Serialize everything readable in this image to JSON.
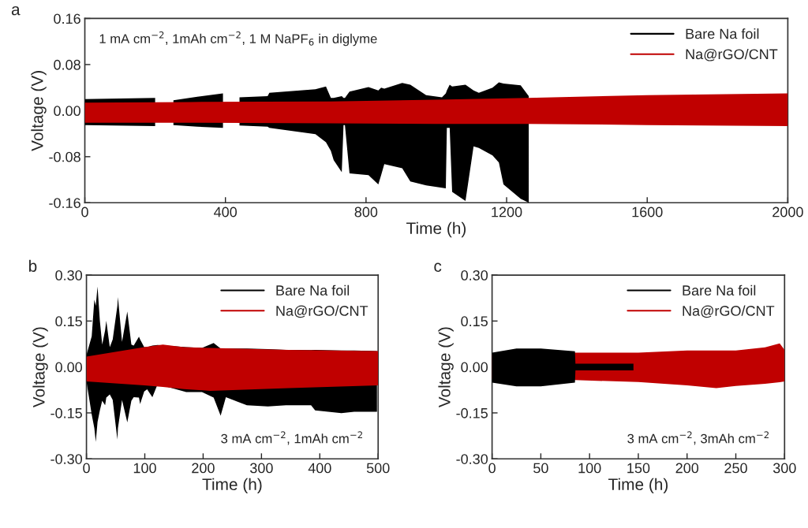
{
  "chart_data": [
    {
      "type": "line",
      "title": "a",
      "xlabel": "Time (h)",
      "ylabel": "Voltage (V)",
      "annotations": [
        "1 mA cm$^{−2}$, 1mAh cm$^{−2}$, 1 M NaPF$_{6}$ in diglyme"
      ],
      "xlim": [
        0,
        2000
      ],
      "xticks": [
        0,
        400,
        800,
        1200,
        1600,
        2000
      ],
      "ylim": [
        -0.16,
        0.16
      ],
      "yticks": [
        {
          "value": -0.16,
          "label": "-0.16"
        },
        {
          "value": -0.08,
          "label": "-0.08"
        },
        {
          "value": 0,
          "label": "0.00"
        },
        {
          "value": 0.08,
          "label": "0.08"
        },
        {
          "value": 0.16,
          "label": "0.16"
        }
      ],
      "legend": "top right",
      "series": [
        {
          "name": "Bare Na foil",
          "color": "#000000",
          "x": [
            0,
            200,
            202,
            252,
            320,
            393,
            395,
            440,
            520,
            525,
            656,
            686,
            700,
            708,
            731,
            736,
            740,
            753,
            807,
            835,
            843,
            852,
            903,
            926,
            971,
            1016,
            1027,
            1030,
            1038,
            1045,
            1083,
            1106,
            1121,
            1160,
            1178,
            1191,
            1240,
            1263
          ],
          "values": [
            null,
            null,
            null,
            null,
            null,
            null,
            null,
            null,
            null,
            null,
            null,
            null,
            null,
            null,
            null,
            null,
            null,
            null,
            null,
            null,
            null,
            null,
            null,
            null,
            null,
            null,
            null,
            null,
            null,
            null,
            null,
            null,
            null,
            null,
            null,
            null,
            null,
            null
          ],
          "upper": [
            0.02,
            0.022,
            null,
            0.018,
            0.024,
            0.03,
            null,
            0.023,
            0.025,
            0.031,
            0.037,
            0.042,
            0.022,
            0.022,
            0.025,
            0.022,
            0.022,
            0.033,
            0.041,
            0.035,
            0.04,
            0.038,
            0.048,
            0.045,
            0.027,
            0.023,
            0.03,
            0.035,
            0.045,
            0.042,
            0.045,
            0.035,
            0.031,
            0.04,
            0.049,
            0.047,
            0.044,
            0.025
          ],
          "lower": [
            -0.025,
            -0.027,
            null,
            -0.025,
            -0.028,
            -0.03,
            null,
            -0.026,
            -0.028,
            -0.03,
            -0.041,
            -0.055,
            -0.07,
            -0.086,
            -0.107,
            -0.025,
            -0.025,
            -0.109,
            -0.112,
            -0.128,
            -0.112,
            -0.093,
            -0.1,
            -0.123,
            -0.13,
            -0.134,
            -0.135,
            -0.03,
            -0.03,
            -0.141,
            -0.157,
            -0.062,
            -0.065,
            -0.078,
            -0.09,
            -0.128,
            -0.153,
            -0.16
          ]
        },
        {
          "name": "Na@rGO/CNT",
          "color": "#c00000",
          "x": [
            0,
            300,
            700,
            1000,
            1260,
            1600,
            2000
          ],
          "values": [
            null,
            null,
            null,
            null,
            null,
            null,
            null
          ],
          "upper": [
            0.014,
            0.015,
            0.016,
            0.019,
            0.022,
            0.027,
            0.03
          ],
          "lower": [
            -0.021,
            -0.021,
            -0.022,
            -0.023,
            -0.023,
            -0.025,
            -0.027
          ]
        }
      ]
    },
    {
      "type": "line",
      "title": "b",
      "xlabel": "Time (h)",
      "ylabel": "Voltage (V)",
      "annotations": [
        "3 mA cm$^{−2}$, 1mAh cm$^{−2}$"
      ],
      "xlim": [
        0,
        500
      ],
      "xticks": [
        0,
        100,
        200,
        300,
        400,
        500
      ],
      "ylim": [
        -0.3,
        0.3
      ],
      "yticks": [
        {
          "value": -0.3,
          "label": "-0.30"
        },
        {
          "value": -0.15,
          "label": "-0.15"
        },
        {
          "value": 0,
          "label": "0.00"
        },
        {
          "value": 0.15,
          "label": "0.15"
        },
        {
          "value": 0.3,
          "label": "0.30"
        }
      ],
      "legend": "top right",
      "series": [
        {
          "name": "Bare Na foil",
          "color": "#000000",
          "x": [
            0,
            9,
            13.5,
            16,
            19,
            23,
            27,
            32,
            34,
            40,
            45,
            53,
            54,
            61,
            70,
            77,
            81,
            90,
            92,
            99,
            104,
            113,
            122,
            171,
            198,
            218,
            230,
            239,
            275,
            311,
            342,
            385,
            392,
            437,
            459,
            498
          ],
          "values": [
            null,
            null,
            null,
            null,
            null,
            null,
            null,
            null,
            null,
            null,
            null,
            null,
            null,
            null,
            null,
            null,
            null,
            null,
            null,
            null,
            null,
            null,
            null,
            null,
            null,
            null,
            null,
            null,
            null,
            null,
            null,
            null,
            null,
            null,
            null,
            null
          ],
          "upper": [
            0.039,
            0.1,
            0.22,
            0.2,
            0.263,
            0.15,
            0.073,
            0.12,
            0.151,
            0.065,
            0.09,
            0.2,
            0.228,
            0.082,
            0.181,
            0.073,
            0.07,
            0.099,
            0.09,
            0.065,
            0.065,
            0.07,
            0.072,
            0.065,
            0.062,
            0.078,
            0.06,
            0.06,
            0.06,
            0.058,
            0.056,
            0.055,
            0.056,
            0.054,
            0.054,
            0.052
          ],
          "lower": [
            -0.047,
            -0.155,
            -0.2,
            -0.245,
            -0.18,
            -0.142,
            -0.11,
            -0.125,
            -0.1,
            -0.09,
            -0.108,
            -0.237,
            -0.2,
            -0.108,
            -0.181,
            -0.11,
            -0.099,
            -0.1,
            -0.121,
            -0.08,
            -0.073,
            -0.099,
            -0.056,
            -0.082,
            -0.082,
            -0.1,
            -0.159,
            -0.099,
            -0.125,
            -0.129,
            -0.125,
            -0.125,
            -0.142,
            -0.151,
            -0.146,
            -0.146
          ]
        },
        {
          "name": "Na@rGO/CNT",
          "color": "#c00000",
          "x": [
            0,
            99,
            131,
            167,
            212,
            347,
            500
          ],
          "values": [
            null,
            null,
            null,
            null,
            null,
            null,
            null
          ],
          "upper": [
            0.034,
            0.065,
            0.073,
            0.065,
            0.062,
            0.056,
            0.052
          ],
          "lower": [
            -0.047,
            -0.06,
            -0.065,
            -0.072,
            -0.078,
            -0.069,
            -0.06
          ]
        }
      ]
    },
    {
      "type": "line",
      "title": "c",
      "xlabel": "Time (h)",
      "ylabel": "Voltage (V)",
      "annotations": [
        "3 mA cm$^{−2}$, 3mAh cm$^{−2}$"
      ],
      "xlim": [
        0,
        300
      ],
      "xticks": [
        0,
        50,
        100,
        150,
        200,
        250,
        300
      ],
      "ylim": [
        -0.3,
        0.3
      ],
      "yticks": [
        {
          "value": -0.3,
          "label": "-0.30"
        },
        {
          "value": -0.15,
          "label": "-0.15"
        },
        {
          "value": 0,
          "label": "0.00"
        },
        {
          "value": 0.15,
          "label": "0.15"
        },
        {
          "value": 0.3,
          "label": "0.30"
        }
      ],
      "legend": "top right",
      "series": [
        {
          "name": "Bare Na foil",
          "color": "#000000",
          "x": [
            0,
            25,
            50,
            85,
            85.5,
            145
          ],
          "values": [
            null,
            null,
            null,
            null,
            null,
            null
          ],
          "upper": [
            0.047,
            0.06,
            0.06,
            0.051,
            0.011,
            0.011
          ],
          "lower": [
            -0.051,
            -0.063,
            -0.063,
            -0.051,
            -0.011,
            -0.011
          ]
        },
        {
          "name": "Na@rGO/CNT",
          "color": "#c00000",
          "x": [
            0,
            85,
            150,
            200,
            230,
            250,
            280,
            295,
            300
          ],
          "values": [
            null,
            null,
            null,
            null,
            null,
            null,
            null,
            null,
            null
          ],
          "upper": [
            0.04,
            0.047,
            0.047,
            0.054,
            0.054,
            0.054,
            0.064,
            0.077,
            0.056
          ],
          "lower": [
            -0.039,
            -0.043,
            -0.049,
            -0.06,
            -0.069,
            -0.062,
            -0.055,
            -0.05,
            -0.047
          ]
        }
      ]
    }
  ]
}
